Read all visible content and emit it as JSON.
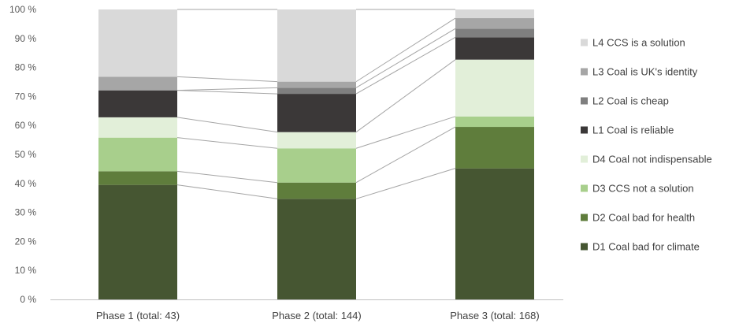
{
  "chart_data": {
    "type": "bar",
    "stacked": true,
    "percent_stacked": true,
    "connector_lines": true,
    "grid": false,
    "legend_position": "right",
    "ylim": [
      0,
      100
    ],
    "y_ticks": [
      "0 %",
      "10 %",
      "20 %",
      "30 %",
      "40 %",
      "50 %",
      "60 %",
      "70 %",
      "80 %",
      "90 %",
      "100 %"
    ],
    "y_tick_values": [
      0,
      10,
      20,
      30,
      40,
      50,
      60,
      70,
      80,
      90,
      100
    ],
    "categories": [
      "Phase 1 (total: 43)",
      "Phase 2 (total: 144)",
      "Phase 3 (total: 168)"
    ],
    "series": [
      {
        "name": "D1 Coal bad for climate",
        "color": "#465632",
        "values": [
          39.5,
          34.7,
          45.2
        ]
      },
      {
        "name": "D2 Coal bad for health",
        "color": "#5f7d3c",
        "values": [
          4.7,
          5.6,
          14.3
        ]
      },
      {
        "name": "D3 CCS not a solution",
        "color": "#a8cf8c",
        "values": [
          11.6,
          11.8,
          3.6
        ]
      },
      {
        "name": "D4 Coal not indispensable",
        "color": "#e2efd9",
        "values": [
          7.0,
          5.6,
          19.6
        ]
      },
      {
        "name": "L1 Coal is reliable",
        "color": "#3b3838",
        "values": [
          9.3,
          13.2,
          7.7
        ]
      },
      {
        "name": "L2 Coal is cheap",
        "color": "#7f7f7f",
        "values": [
          0.0,
          2.1,
          3.0
        ]
      },
      {
        "name": "L3 Coal is UK's identity",
        "color": "#a6a6a6",
        "values": [
          4.7,
          2.1,
          3.6
        ]
      },
      {
        "name": "L4 CCS is a solution",
        "color": "#d9d9d9",
        "values": [
          23.2,
          24.9,
          3.0
        ]
      }
    ]
  }
}
